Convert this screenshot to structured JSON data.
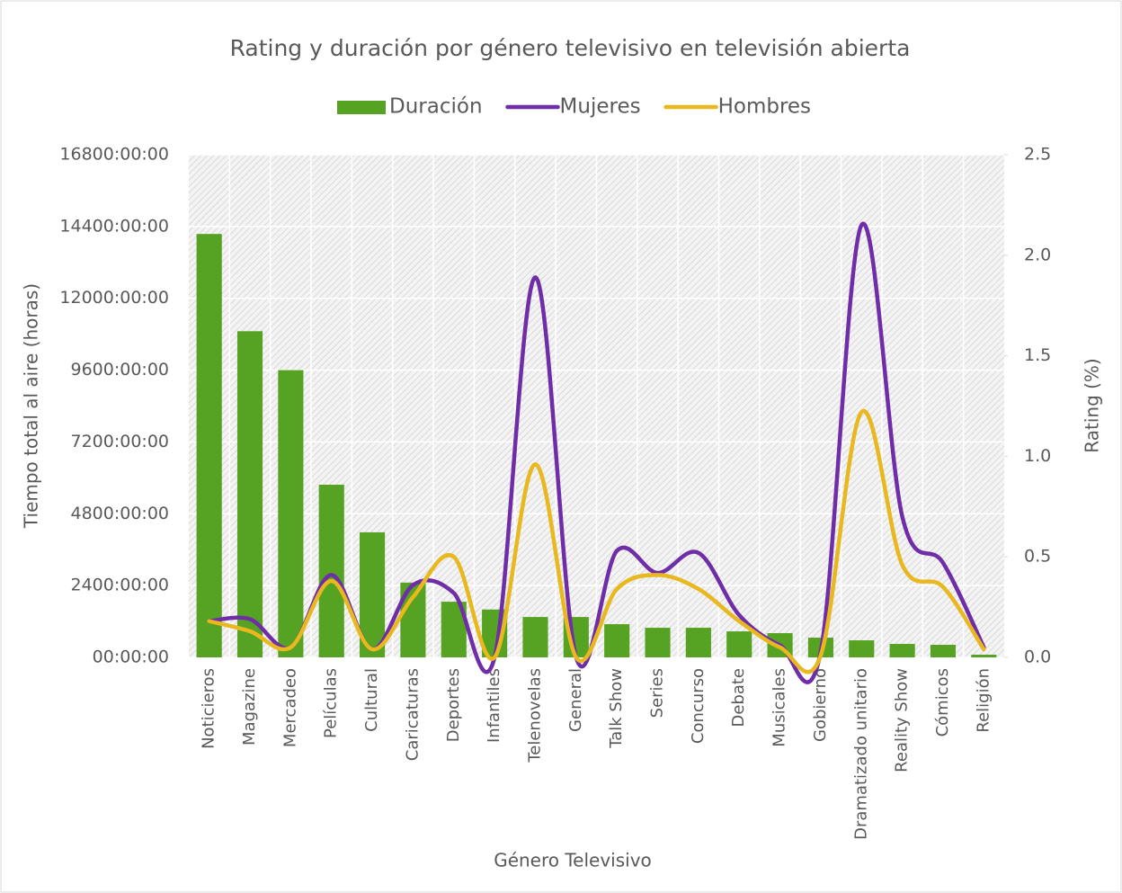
{
  "chart_data": {
    "type": "bar-line",
    "title": "Rating y duración por género televisivo en televisión abierta",
    "x_label": "Género Televisivo",
    "y_label": "Tiempo total al aire (horas)",
    "y2_label": "Rating (%)",
    "categories": [
      "Noticieros",
      "Magazine",
      "Mercadeo",
      "Películas",
      "Cultural",
      "Caricaturas",
      "Deportes",
      "Infantiles",
      "Telenovelas",
      "General",
      "Talk Show",
      "Series",
      "Concurso",
      "Debate",
      "Musicales",
      "Gobierno",
      "Dramatizado unitario",
      "Reality Show",
      "Cómicos",
      "Religión"
    ],
    "series": [
      {
        "name": "Duración",
        "type": "bar",
        "color": "#56a222",
        "values": [
          14150,
          10900,
          9600,
          5770,
          4180,
          2500,
          1860,
          1600,
          1350,
          1350,
          1110,
          990,
          990,
          870,
          810,
          660,
          570,
          450,
          420,
          90
        ]
      },
      {
        "name": "Mujeres",
        "type": "line",
        "axis": "y2",
        "color": "#6f2da8",
        "values": [
          0.18,
          0.19,
          0.05,
          0.41,
          0.04,
          0.36,
          0.32,
          0.0,
          1.89,
          0.0,
          0.53,
          0.42,
          0.52,
          0.21,
          0.06,
          0.03,
          2.15,
          0.7,
          0.47,
          0.05
        ]
      },
      {
        "name": "Hombres",
        "type": "line",
        "axis": "y2",
        "color": "#e8b81e",
        "values": [
          0.18,
          0.13,
          0.05,
          0.38,
          0.04,
          0.3,
          0.5,
          0.0,
          0.96,
          0.0,
          0.34,
          0.41,
          0.34,
          0.18,
          0.05,
          0.01,
          1.22,
          0.46,
          0.35,
          0.04
        ]
      }
    ],
    "ylim": [
      0,
      16800
    ],
    "yticks": [
      {
        "value": 0,
        "label": "00:00:00"
      },
      {
        "value": 2400,
        "label": "2400:00:00"
      },
      {
        "value": 4800,
        "label": "4800:00:00"
      },
      {
        "value": 7200,
        "label": "7200:00:00"
      },
      {
        "value": 9600,
        "label": "9600:00:00"
      },
      {
        "value": 12000,
        "label": "12000:00:00"
      },
      {
        "value": 14400,
        "label": "14400:00:00"
      },
      {
        "value": 16800,
        "label": "16800:00:00"
      }
    ],
    "y2lim": [
      0,
      2.5
    ],
    "y2ticks": [
      {
        "value": 0,
        "label": "0.0"
      },
      0.5,
      {
        "value": 1,
        "label": "1.0"
      },
      1.5,
      {
        "value": 2,
        "label": "2.0"
      },
      2.5
    ],
    "grid": true,
    "legend": "top"
  }
}
